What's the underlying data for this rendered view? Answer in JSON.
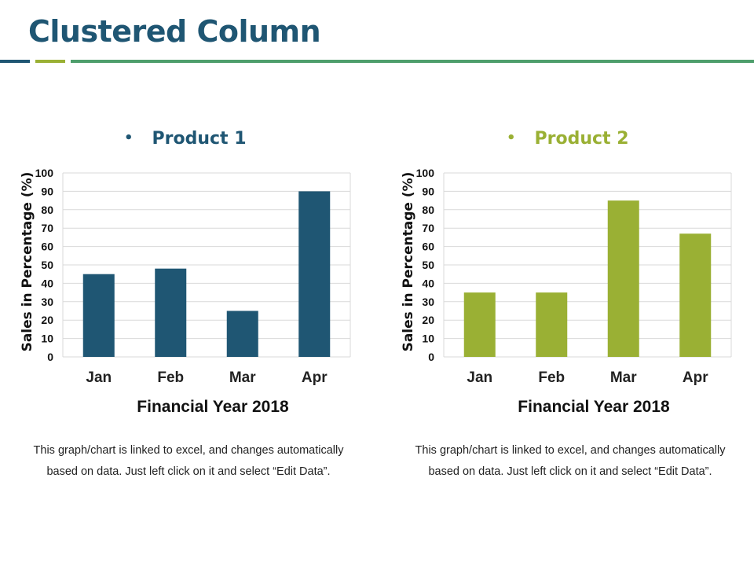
{
  "page": {
    "title": "Clustered Column",
    "colors": {
      "title": "#1f5673",
      "accent_navy": "#1f5673",
      "accent_olive": "#9ab034",
      "accent_green": "#4e9e6c"
    }
  },
  "chart_data": [
    {
      "type": "bar",
      "title": "Product 1",
      "categories": [
        "Jan",
        "Feb",
        "Mar",
        "Apr"
      ],
      "series": [
        {
          "name": "Product 1",
          "values": [
            45,
            48,
            25,
            90
          ],
          "color": "#1f5673"
        }
      ],
      "xlabel": "Financial Year 2018",
      "ylabel": "Sales in Percentage (%)",
      "ylim": [
        0,
        100
      ],
      "yticks": [
        0,
        10,
        20,
        30,
        40,
        50,
        60,
        70,
        80,
        90,
        100
      ],
      "grid": true,
      "legend_bullet": "•"
    },
    {
      "type": "bar",
      "title": "Product 2",
      "categories": [
        "Jan",
        "Feb",
        "Mar",
        "Apr"
      ],
      "series": [
        {
          "name": "Product 2",
          "values": [
            35,
            35,
            85,
            67
          ],
          "color": "#9ab034"
        }
      ],
      "xlabel": "Financial Year 2018",
      "ylabel": "Sales in Percentage (%)",
      "ylim": [
        0,
        100
      ],
      "yticks": [
        0,
        10,
        20,
        30,
        40,
        50,
        60,
        70,
        80,
        90,
        100
      ],
      "grid": true,
      "legend_bullet": "•"
    }
  ],
  "notes": [
    "This graph/chart is linked to excel, and changes automatically based on data. Just left click on it and select “Edit Data”.",
    "This graph/chart is linked to excel, and changes automatically based on data. Just left click on it and select “Edit Data”."
  ]
}
